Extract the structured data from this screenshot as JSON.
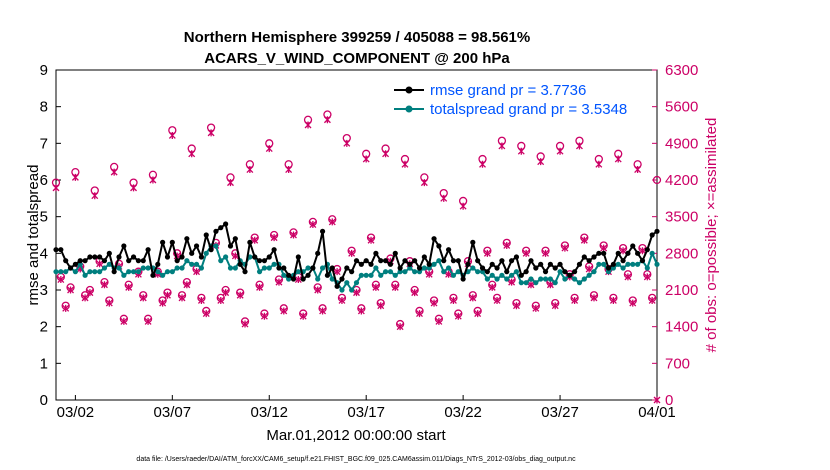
{
  "chart_data": {
    "type": "line",
    "title_line1": "Northern Hemisphere 399259 / 405088 = 98.561%",
    "title_line2": "ACARS_V_WIND_COMPONENT @ 200 hPa",
    "xlabel": "Mar.01,2012 00:00:00 start",
    "ylabel_left": "rmse and totalspread",
    "ylabel_right": "# of obs: o=possible; ×=assimilated",
    "footer": "data file: /Users/raeder/DAI/ATM_forcXX/CAM6_setup/f.e21.FHIST_BGC.f09_025.CAM6assim.011/Diags_NTrS_2012-03/obs_diag_output.nc",
    "xlim": [
      0,
      31
    ],
    "ylim_left": [
      0,
      9
    ],
    "ylim_right": [
      0,
      6300
    ],
    "x_ticks": [
      1,
      6,
      11,
      16,
      21,
      26,
      31
    ],
    "x_tick_labels": [
      "03/02",
      "03/07",
      "03/12",
      "03/17",
      "03/22",
      "03/27",
      "04/01"
    ],
    "y_left_ticks": [
      "0",
      "1",
      "2",
      "3",
      "4",
      "5",
      "6",
      "7",
      "8",
      "9"
    ],
    "y_right_ticks": [
      "0",
      "700",
      "1400",
      "2100",
      "2800",
      "3500",
      "4200",
      "4900",
      "5600",
      "6300"
    ],
    "legend": {
      "rmse_label": "rmse grand pr = 3.7736",
      "spread_label": "totalspread grand pr = 3.5348"
    },
    "colors": {
      "rmse": "#000000",
      "spread": "#007f7f",
      "obs": "#cc0066",
      "legend_text": "#0055ff"
    },
    "series": [
      {
        "name": "rmse",
        "x": [
          0.0,
          0.25,
          0.5,
          0.75,
          1.0,
          1.25,
          1.5,
          1.75,
          2.0,
          2.25,
          2.5,
          2.75,
          3.0,
          3.25,
          3.5,
          3.75,
          4.0,
          4.25,
          4.5,
          4.75,
          5.0,
          5.25,
          5.5,
          5.75,
          6.0,
          6.25,
          6.5,
          6.75,
          7.0,
          7.25,
          7.5,
          7.75,
          8.0,
          8.25,
          8.5,
          8.75,
          9.0,
          9.25,
          9.5,
          9.75,
          10.0,
          10.25,
          10.5,
          10.75,
          11.0,
          11.25,
          11.5,
          11.75,
          12.0,
          12.25,
          12.5,
          12.75,
          13.0,
          13.25,
          13.5,
          13.75,
          14.0,
          14.25,
          14.5,
          14.75,
          15.0,
          15.25,
          15.5,
          15.75,
          16.0,
          16.25,
          16.5,
          16.75,
          17.0,
          17.25,
          17.5,
          17.75,
          18.0,
          18.25,
          18.5,
          18.75,
          19.0,
          19.25,
          19.5,
          19.75,
          20.0,
          20.25,
          20.5,
          20.75,
          21.0,
          21.25,
          21.5,
          21.75,
          22.0,
          22.25,
          22.5,
          22.75,
          23.0,
          23.25,
          23.5,
          23.75,
          24.0,
          24.25,
          24.5,
          24.75,
          25.0,
          25.25,
          25.5,
          25.75,
          26.0,
          26.25,
          26.5,
          26.75,
          27.0,
          27.25,
          27.5,
          27.75,
          28.0,
          28.25,
          28.5,
          28.75,
          29.0,
          29.25,
          29.5,
          29.75,
          30.0,
          30.25,
          30.5,
          30.75,
          31.0
        ],
        "values": [
          4.1,
          4.1,
          3.8,
          3.6,
          3.7,
          3.8,
          3.8,
          3.9,
          3.9,
          3.9,
          3.8,
          4.0,
          3.5,
          3.9,
          4.2,
          3.8,
          3.9,
          3.8,
          3.8,
          4.1,
          3.4,
          3.7,
          4.3,
          3.9,
          4.3,
          3.8,
          3.9,
          4.4,
          4.0,
          4.2,
          3.9,
          4.5,
          4.1,
          4.6,
          4.7,
          4.8,
          4.2,
          4.4,
          3.7,
          3.5,
          4.3,
          3.9,
          3.8,
          3.8,
          3.9,
          4.1,
          3.6,
          3.6,
          3.4,
          3.3,
          3.9,
          3.3,
          3.4,
          3.6,
          4.0,
          4.6,
          3.4,
          3.6,
          3.1,
          3.3,
          3.6,
          3.5,
          3.8,
          3.7,
          3.8,
          3.7,
          4.0,
          3.8,
          3.8,
          3.7,
          4.0,
          3.6,
          3.8,
          3.7,
          3.8,
          3.6,
          3.9,
          3.7,
          4.4,
          4.2,
          3.8,
          4.1,
          3.8,
          3.8,
          3.3,
          3.7,
          4.3,
          3.8,
          3.6,
          3.5,
          3.7,
          3.6,
          3.8,
          3.5,
          3.8,
          3.9,
          3.4,
          3.5,
          3.8,
          3.6,
          3.7,
          3.5,
          3.7,
          3.6,
          3.7,
          3.5,
          3.4,
          3.5,
          3.7,
          3.9,
          3.8,
          3.9,
          4.0,
          4.0,
          3.6,
          3.7,
          4.0,
          3.8,
          4.0,
          4.2,
          4.0,
          3.8,
          4.1,
          4.5,
          4.6
        ],
        "start_label": "03/02"
      },
      {
        "name": "totalspread",
        "x": [
          0.0,
          0.25,
          0.5,
          0.75,
          1.0,
          1.25,
          1.5,
          1.75,
          2.0,
          2.25,
          2.5,
          2.75,
          3.0,
          3.25,
          3.5,
          3.75,
          4.0,
          4.25,
          4.5,
          4.75,
          5.0,
          5.25,
          5.5,
          5.75,
          6.0,
          6.25,
          6.5,
          6.75,
          7.0,
          7.25,
          7.5,
          7.75,
          8.0,
          8.25,
          8.5,
          8.75,
          9.0,
          9.25,
          9.5,
          9.75,
          10.0,
          10.25,
          10.5,
          10.75,
          11.0,
          11.25,
          11.5,
          11.75,
          12.0,
          12.25,
          12.5,
          12.75,
          13.0,
          13.25,
          13.5,
          13.75,
          14.0,
          14.25,
          14.5,
          14.75,
          15.0,
          15.25,
          15.5,
          15.75,
          16.0,
          16.25,
          16.5,
          16.75,
          17.0,
          17.25,
          17.5,
          17.75,
          18.0,
          18.25,
          18.5,
          18.75,
          19.0,
          19.25,
          19.5,
          19.75,
          20.0,
          20.25,
          20.5,
          20.75,
          21.0,
          21.25,
          21.5,
          21.75,
          22.0,
          22.25,
          22.5,
          22.75,
          23.0,
          23.25,
          23.5,
          23.75,
          24.0,
          24.25,
          24.5,
          24.75,
          25.0,
          25.25,
          25.5,
          25.75,
          26.0,
          26.25,
          26.5,
          26.75,
          27.0,
          27.25,
          27.5,
          27.75,
          28.0,
          28.25,
          28.5,
          28.75,
          29.0,
          29.25,
          29.5,
          29.75,
          30.0,
          30.25,
          30.5,
          30.75,
          31.0
        ],
        "values": [
          3.5,
          3.5,
          3.5,
          3.6,
          3.5,
          3.7,
          3.4,
          3.5,
          3.5,
          3.5,
          3.6,
          3.7,
          3.6,
          3.6,
          3.4,
          3.5,
          3.5,
          3.5,
          3.6,
          3.6,
          3.6,
          3.5,
          3.4,
          3.5,
          3.5,
          3.6,
          3.6,
          3.8,
          3.7,
          3.7,
          3.6,
          4.0,
          4.2,
          4.2,
          3.8,
          3.9,
          3.6,
          3.6,
          3.8,
          3.7,
          3.9,
          3.9,
          3.5,
          3.6,
          3.6,
          3.7,
          3.7,
          3.4,
          3.3,
          3.4,
          3.5,
          3.5,
          3.6,
          3.6,
          3.3,
          3.6,
          3.7,
          3.3,
          3.2,
          3.0,
          3.2,
          3.0,
          3.2,
          3.4,
          3.4,
          3.4,
          3.6,
          3.4,
          3.5,
          3.5,
          3.4,
          3.5,
          3.5,
          3.6,
          3.5,
          3.5,
          3.6,
          3.6,
          3.7,
          3.8,
          3.5,
          3.6,
          3.4,
          3.5,
          3.4,
          3.5,
          3.6,
          3.5,
          3.5,
          3.3,
          3.4,
          3.3,
          3.4,
          3.3,
          3.4,
          3.5,
          3.2,
          3.2,
          3.3,
          3.2,
          3.3,
          3.3,
          3.3,
          3.2,
          3.5,
          3.3,
          3.4,
          3.3,
          3.2,
          3.3,
          3.4,
          3.5,
          3.7,
          3.7,
          3.5,
          3.6,
          3.7,
          3.6,
          3.7,
          3.7,
          3.7,
          3.8,
          3.6,
          4.0,
          3.7
        ]
      },
      {
        "name": "obs_possible",
        "axis": "right",
        "x": [
          0.0,
          0.25,
          0.5,
          0.75,
          1.0,
          1.25,
          1.5,
          1.75,
          2.0,
          2.25,
          2.5,
          2.75,
          3.0,
          3.25,
          3.5,
          3.75,
          4.0,
          4.25,
          4.5,
          4.75,
          5.0,
          5.25,
          5.5,
          5.75,
          6.0,
          6.25,
          6.5,
          6.75,
          7.0,
          7.25,
          7.5,
          7.75,
          8.0,
          8.25,
          8.5,
          8.75,
          9.0,
          9.25,
          9.5,
          9.75,
          10.0,
          10.25,
          10.5,
          10.75,
          11.0,
          11.25,
          11.5,
          11.75,
          12.0,
          12.25,
          12.5,
          12.75,
          13.0,
          13.25,
          13.5,
          13.75,
          14.0,
          14.25,
          14.5,
          14.75,
          15.0,
          15.25,
          15.5,
          15.75,
          16.0,
          16.25,
          16.5,
          16.75,
          17.0,
          17.25,
          17.5,
          17.75,
          18.0,
          18.25,
          18.5,
          18.75,
          19.0,
          19.25,
          19.5,
          19.75,
          20.0,
          20.25,
          20.5,
          20.75,
          21.0,
          21.25,
          21.5,
          21.75,
          22.0,
          22.25,
          22.5,
          22.75,
          23.0,
          23.25,
          23.5,
          23.75,
          24.0,
          24.25,
          24.5,
          24.75,
          25.0,
          25.25,
          25.5,
          25.75,
          26.0,
          26.25,
          26.5,
          26.75,
          27.0,
          27.25,
          27.5,
          27.75,
          28.0,
          28.25,
          28.5,
          28.75,
          29.0,
          29.25,
          29.5,
          29.75,
          30.0,
          30.25,
          30.5,
          30.75,
          31.0
        ],
        "values": [
          4150,
          2350,
          1800,
          2150,
          4350,
          2550,
          2000,
          2100,
          4000,
          2650,
          2250,
          1900,
          4450,
          2600,
          1550,
          2200,
          4150,
          2450,
          2000,
          1550,
          4300,
          2450,
          1900,
          2050,
          5150,
          2800,
          2000,
          2250,
          4800,
          2500,
          1950,
          1700,
          5200,
          3000,
          1950,
          2100,
          4250,
          2800,
          2050,
          1500,
          4500,
          3100,
          2200,
          1650,
          4900,
          3150,
          2300,
          1750,
          4500,
          3200,
          2350,
          1650,
          5350,
          3400,
          2150,
          1750,
          5450,
          3450,
          2500,
          1950,
          5000,
          2850,
          2100,
          1750,
          4700,
          3100,
          2200,
          1850,
          4800,
          2700,
          2200,
          1450,
          4600,
          2650,
          2100,
          1700,
          4250,
          2450,
          1900,
          1550,
          3950,
          2450,
          1950,
          1650,
          3800,
          2650,
          2000,
          1700,
          4600,
          2850,
          2200,
          1950,
          4950,
          3000,
          2300,
          1850,
          4850,
          2850,
          2250,
          1800,
          4650,
          2850,
          2250,
          1850,
          4850,
          2950,
          2400,
          1950,
          4950,
          3100,
          2550,
          2000,
          4600,
          2950,
          2500,
          1950,
          4700,
          2900,
          2400,
          1900,
          4500,
          2900,
          2400,
          1950,
          4200
        ],
        "marker": "circle"
      },
      {
        "name": "obs_assimilated",
        "axis": "right",
        "x": [
          0.0,
          0.25,
          0.5,
          0.75,
          1.0,
          1.25,
          1.5,
          1.75,
          2.0,
          2.25,
          2.5,
          2.75,
          3.0,
          3.25,
          3.5,
          3.75,
          4.0,
          4.25,
          4.5,
          4.75,
          5.0,
          5.25,
          5.5,
          5.75,
          6.0,
          6.25,
          6.5,
          6.75,
          7.0,
          7.25,
          7.5,
          7.75,
          8.0,
          8.25,
          8.5,
          8.75,
          9.0,
          9.25,
          9.5,
          9.75,
          10.0,
          10.25,
          10.5,
          10.75,
          11.0,
          11.25,
          11.5,
          11.75,
          12.0,
          12.25,
          12.5,
          12.75,
          13.0,
          13.25,
          13.5,
          13.75,
          14.0,
          14.25,
          14.5,
          14.75,
          15.0,
          15.25,
          15.5,
          15.75,
          16.0,
          16.25,
          16.5,
          16.75,
          17.0,
          17.25,
          17.5,
          17.75,
          18.0,
          18.25,
          18.5,
          18.75,
          19.0,
          19.25,
          19.5,
          19.75,
          20.0,
          20.25,
          20.5,
          20.75,
          21.0,
          21.25,
          21.5,
          21.75,
          22.0,
          22.25,
          22.5,
          22.75,
          23.0,
          23.25,
          23.5,
          23.75,
          24.0,
          24.25,
          24.5,
          24.75,
          25.0,
          25.25,
          25.5,
          25.75,
          26.0,
          26.25,
          26.5,
          26.75,
          27.0,
          27.25,
          27.5,
          27.75,
          28.0,
          28.25,
          28.5,
          28.75,
          29.0,
          29.25,
          29.5,
          29.75,
          30.0,
          30.25,
          30.5,
          30.75,
          31.0
        ],
        "values": [
          4050,
          2300,
          1750,
          2100,
          4250,
          2500,
          1950,
          2050,
          3900,
          2600,
          2200,
          1850,
          4350,
          2550,
          1500,
          2150,
          4050,
          2400,
          1950,
          1500,
          4200,
          2400,
          1850,
          2000,
          5050,
          2750,
          1950,
          2200,
          4700,
          2450,
          1900,
          1650,
          5100,
          2950,
          1900,
          2050,
          4150,
          2750,
          2000,
          1450,
          4400,
          3050,
          2150,
          1600,
          4800,
          3100,
          2250,
          1700,
          4400,
          3150,
          2300,
          1600,
          5250,
          3350,
          2100,
          1700,
          5350,
          3400,
          2450,
          1900,
          4900,
          2800,
          2050,
          1700,
          4600,
          3050,
          2150,
          1800,
          4700,
          2650,
          2150,
          1400,
          4500,
          2600,
          2050,
          1650,
          4150,
          2400,
          1850,
          1500,
          3850,
          2400,
          1900,
          1600,
          3700,
          2600,
          1950,
          1650,
          4500,
          2800,
          2150,
          1900,
          4850,
          2950,
          2250,
          1800,
          4750,
          2800,
          2200,
          1750,
          4550,
          2800,
          2200,
          1800,
          4750,
          2900,
          2350,
          1900,
          4850,
          3050,
          2500,
          1950,
          4500,
          2900,
          2450,
          1900,
          4600,
          2850,
          2350,
          1850,
          4400,
          2850,
          2350,
          1900,
          0
        ],
        "marker": "x"
      }
    ]
  }
}
